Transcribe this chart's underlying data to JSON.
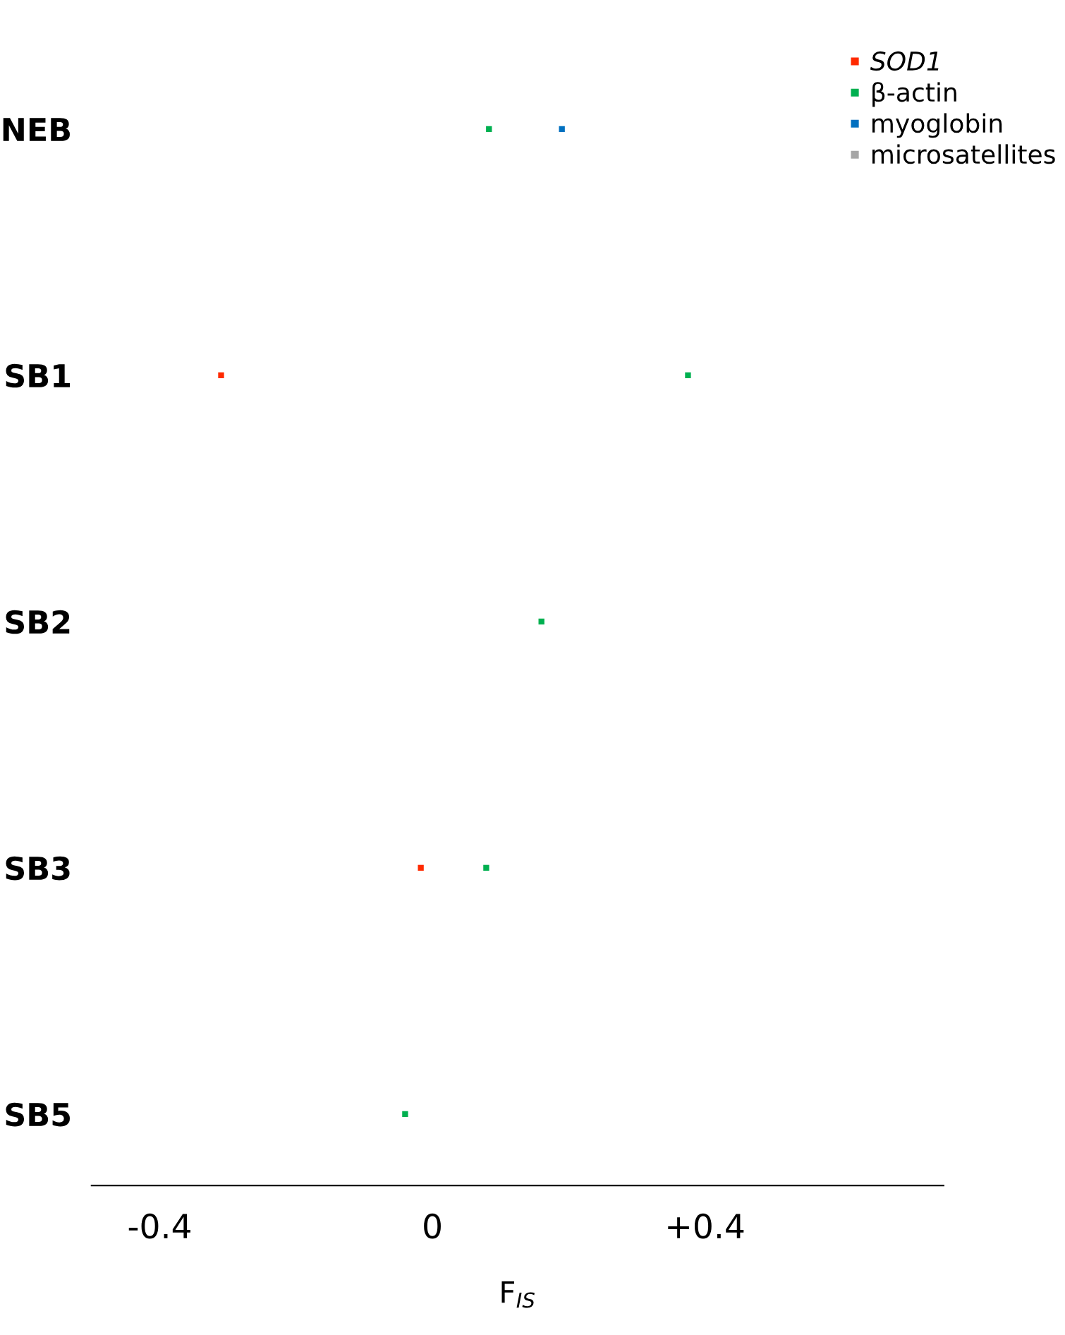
{
  "chart_data": {
    "type": "scatter",
    "orientation": "horizontal",
    "xlabel": "F$_{IS}$",
    "categories": [
      "NEB",
      "SB1",
      "SB2",
      "SB3",
      "SB5"
    ],
    "series": [
      {
        "name": "SOD1",
        "color": "#ff2a00",
        "values": [
          null,
          -0.31,
          null,
          -0.017,
          null
        ]
      },
      {
        "name": "β-actin",
        "color": "#00b050",
        "values": [
          0.083,
          0.375,
          0.16,
          0.079,
          -0.04
        ]
      },
      {
        "name": "myoglobin",
        "color": "#0070c0",
        "values": [
          0.19,
          null,
          null,
          null,
          null
        ]
      },
      {
        "name": "microsatellites",
        "color": "#a6a6a6",
        "values": [
          null,
          null,
          null,
          null,
          null
        ]
      }
    ],
    "xlim": [
      -0.5,
      0.75
    ],
    "xticks": [
      {
        "value": -0.4,
        "label": "-0.4"
      },
      0,
      {
        "value": 0.4,
        "label": "+0.4"
      }
    ],
    "marker": "square",
    "legend": "top right",
    "grid": false
  }
}
